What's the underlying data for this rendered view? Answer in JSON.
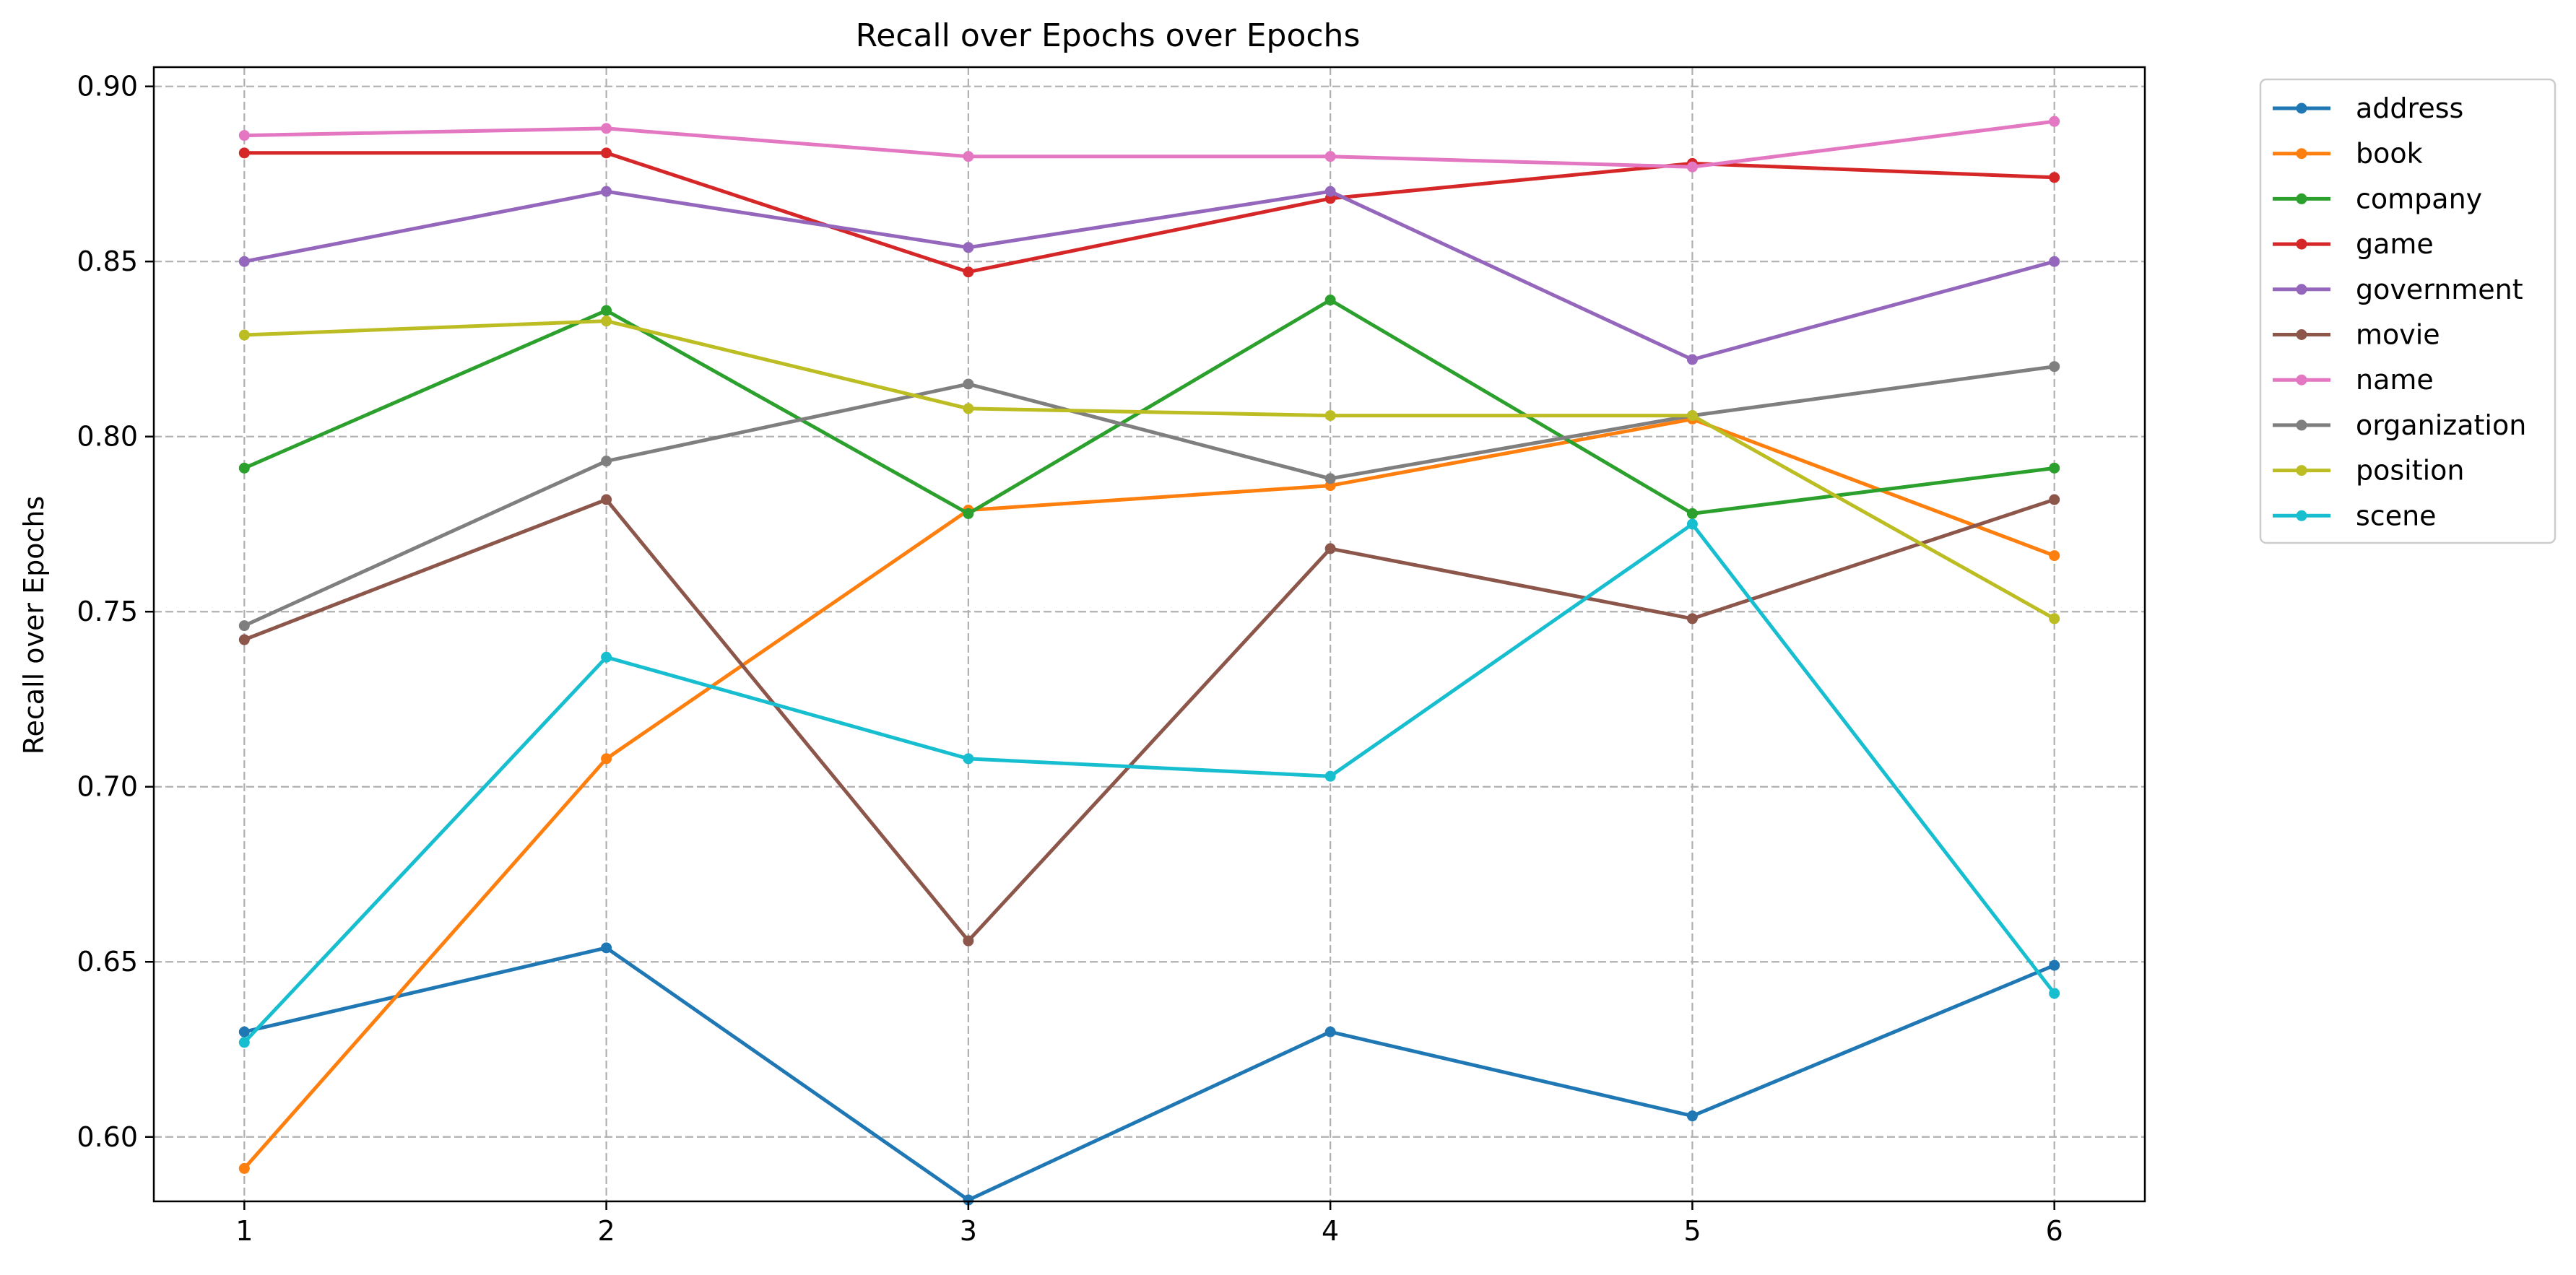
{
  "chart_data": {
    "type": "line",
    "title": "Recall over Epochs over Epochs",
    "xlabel": "",
    "ylabel": "Recall over Epochs",
    "x": [
      1,
      2,
      3,
      4,
      5,
      6
    ],
    "xlim": [
      0.75,
      6.25
    ],
    "ylim": [
      0.5816,
      0.9055
    ],
    "yticks": [
      0.6,
      0.65,
      0.7,
      0.75,
      0.8,
      0.85,
      0.9
    ],
    "grid": true,
    "legend_position": "outside-upper-right",
    "series": [
      {
        "name": "address",
        "color": "#1f77b4",
        "values": [
          0.63,
          0.654,
          0.582,
          0.63,
          0.606,
          0.649
        ]
      },
      {
        "name": "book",
        "color": "#ff7f0e",
        "values": [
          0.591,
          0.708,
          0.779,
          0.786,
          0.805,
          0.766
        ]
      },
      {
        "name": "company",
        "color": "#2ca02c",
        "values": [
          0.791,
          0.836,
          0.778,
          0.839,
          0.778,
          0.791
        ]
      },
      {
        "name": "game",
        "color": "#d62728",
        "values": [
          0.881,
          0.881,
          0.847,
          0.868,
          0.878,
          0.874
        ]
      },
      {
        "name": "government",
        "color": "#9467bd",
        "values": [
          0.85,
          0.87,
          0.854,
          0.87,
          0.822,
          0.85
        ]
      },
      {
        "name": "movie",
        "color": "#8c564b",
        "values": [
          0.742,
          0.782,
          0.656,
          0.768,
          0.748,
          0.782
        ]
      },
      {
        "name": "name",
        "color": "#e377c2",
        "values": [
          0.886,
          0.888,
          0.88,
          0.88,
          0.877,
          0.89
        ]
      },
      {
        "name": "organization",
        "color": "#7f7f7f",
        "values": [
          0.746,
          0.793,
          0.815,
          0.788,
          0.806,
          0.82
        ]
      },
      {
        "name": "position",
        "color": "#bcbd22",
        "values": [
          0.829,
          0.833,
          0.808,
          0.806,
          0.806,
          0.748
        ]
      },
      {
        "name": "scene",
        "color": "#17becf",
        "values": [
          0.627,
          0.737,
          0.708,
          0.703,
          0.775,
          0.641
        ]
      }
    ]
  }
}
